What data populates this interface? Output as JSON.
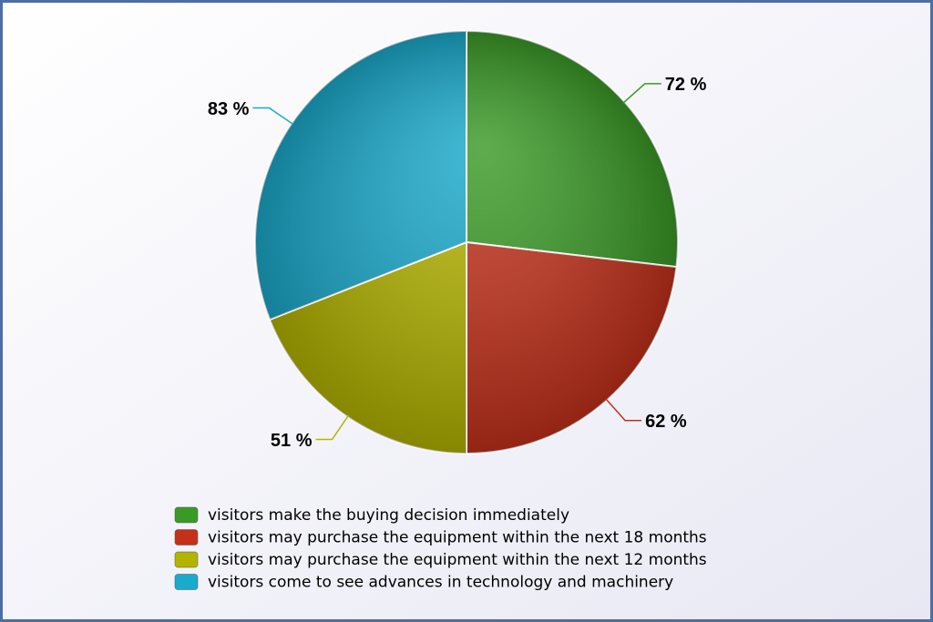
{
  "chart_data": {
    "type": "pie",
    "categories": [
      "visitors make the buying decision immediately",
      "visitors may purchase the equipment within the next 18 months",
      "visitors may purchase the equipment within the next 12 months",
      "visitors come to see advances in technology and machinery"
    ],
    "values": [
      72,
      62,
      51,
      83
    ],
    "value_labels": [
      "72 %",
      "62 %",
      "51 %",
      "83 %"
    ],
    "colors": [
      "#3a9a26",
      "#c4301a",
      "#b4b400",
      "#1aaacc"
    ]
  }
}
